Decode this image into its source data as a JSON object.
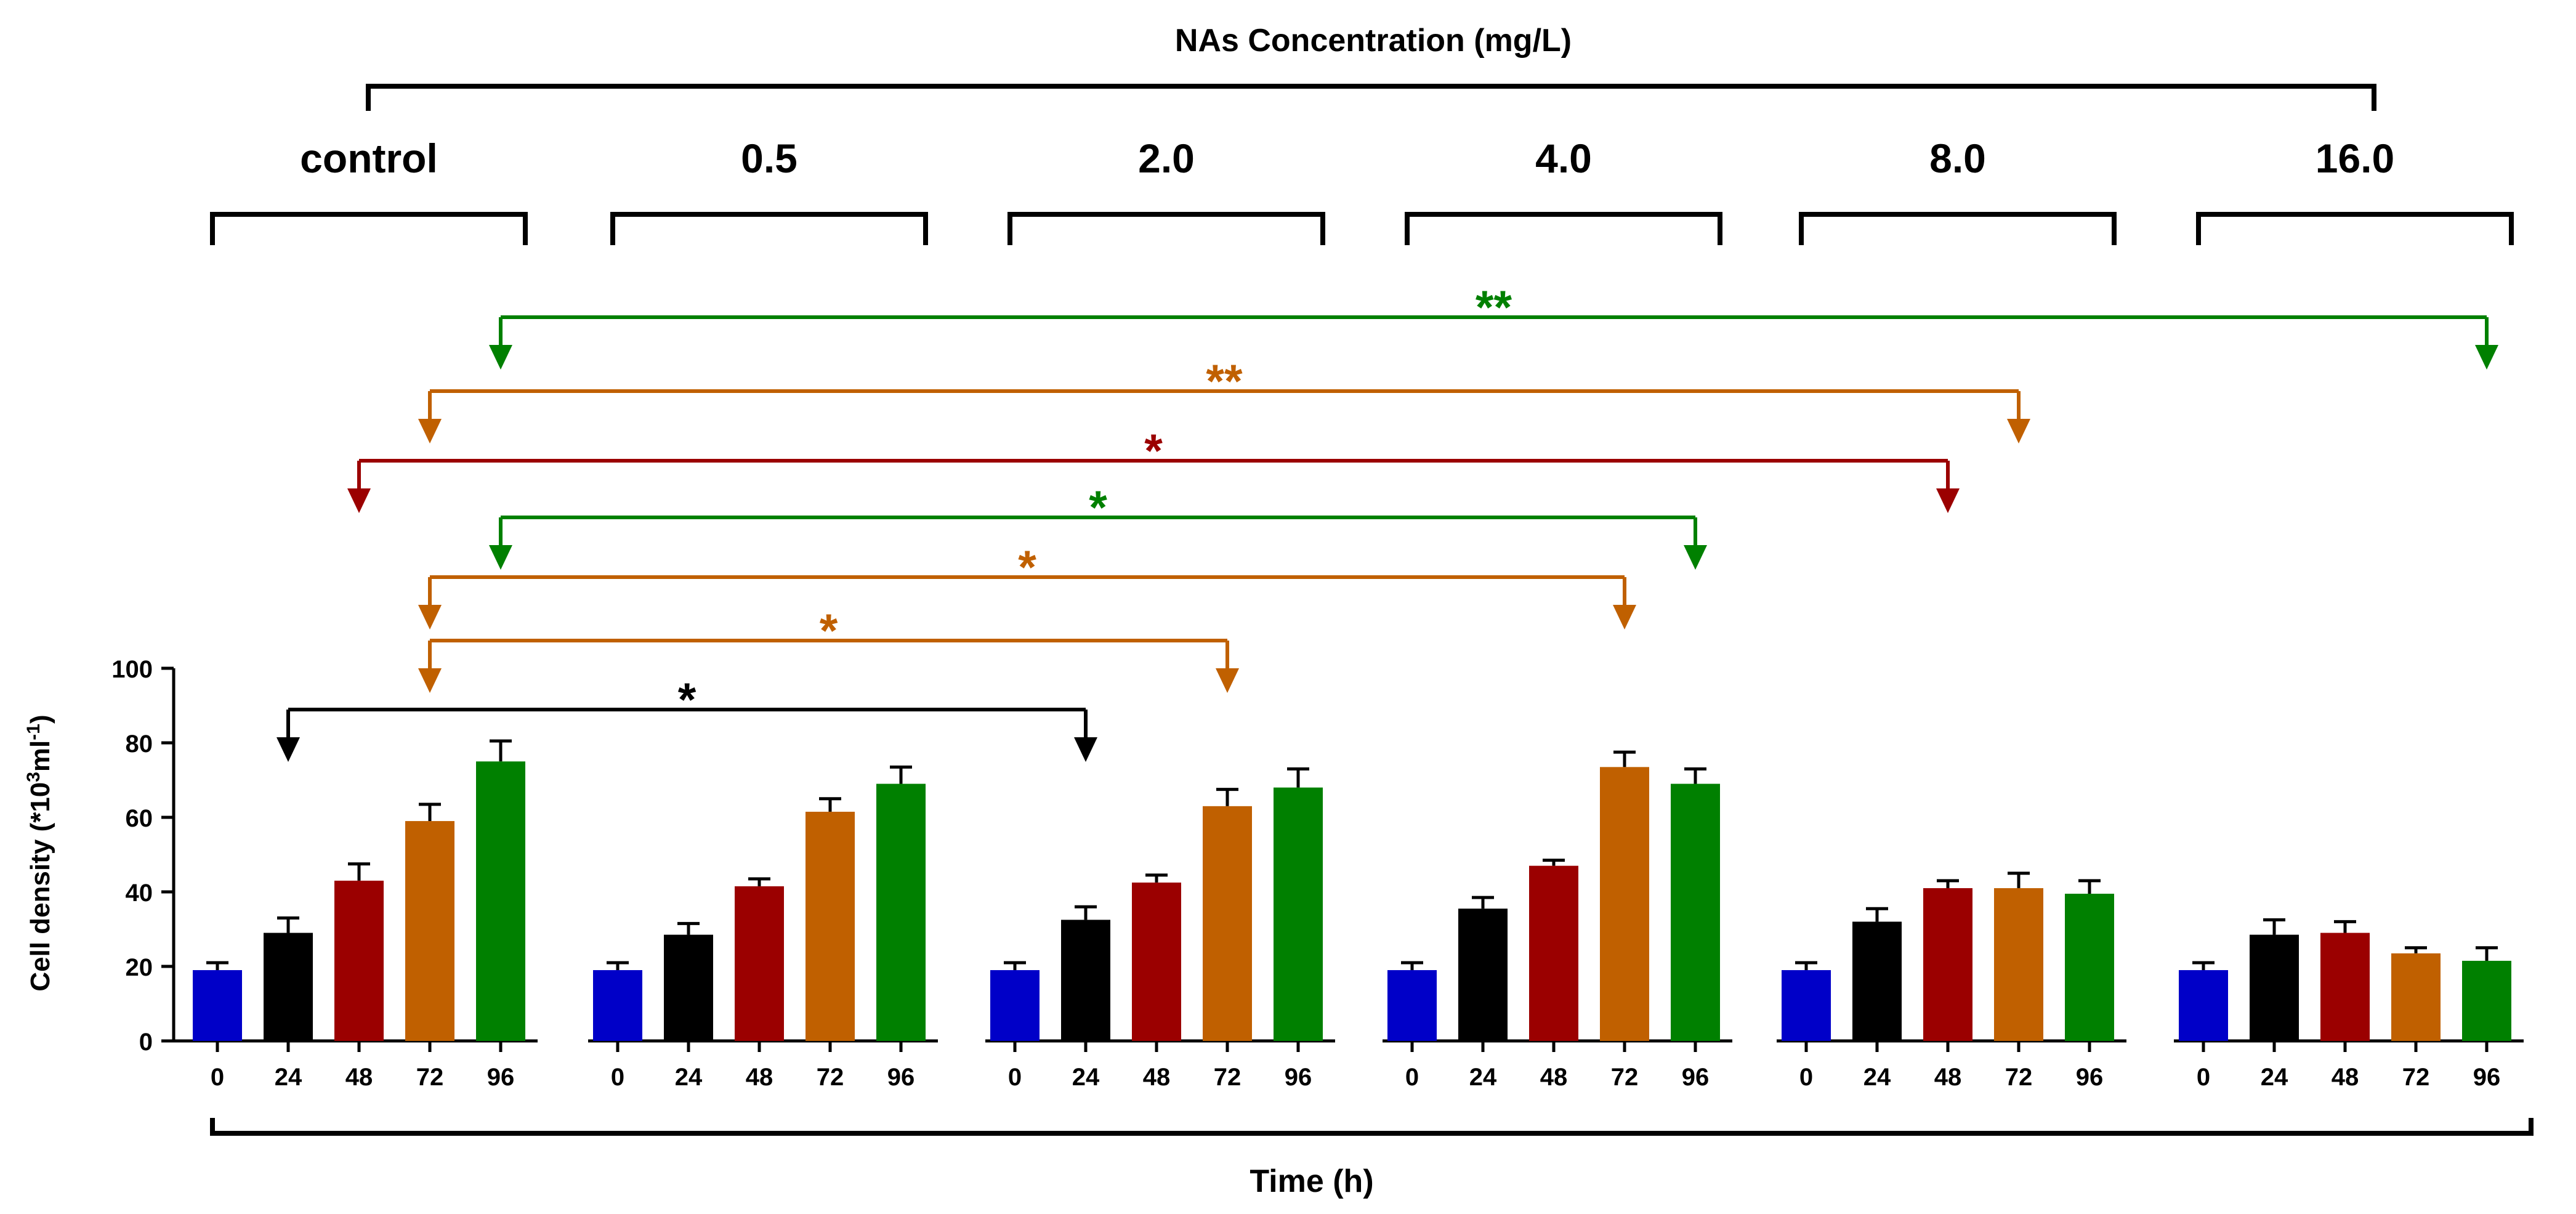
{
  "chart_data": {
    "type": "bar",
    "title": "NAs Concentration (mg/L)",
    "xlabel": "Time (h)",
    "ylabel_main": "Cell density (*10",
    "ylabel_sup1": "3",
    "ylabel_mid": "ml",
    "ylabel_sup2": "-1",
    "ylabel_end": ")",
    "ylim": [
      0,
      100
    ],
    "yticks": [
      "0",
      "20",
      "40",
      "60",
      "80",
      "100"
    ],
    "categories": [
      "0",
      "24",
      "48",
      "72",
      "96"
    ],
    "colors": [
      "#0000c8",
      "#000000",
      "#9b0000",
      "#c06000",
      "#008000"
    ],
    "groups": [
      {
        "label": "control",
        "values": [
          19,
          29,
          43,
          59,
          75
        ],
        "errors": [
          2,
          4,
          4.5,
          4.5,
          5.5
        ]
      },
      {
        "label": "0.5",
        "values": [
          19,
          28.5,
          41.5,
          61.5,
          69
        ],
        "errors": [
          2,
          3,
          2,
          3.5,
          4.5
        ]
      },
      {
        "label": "2.0",
        "values": [
          19,
          32.5,
          42.5,
          63,
          68
        ],
        "errors": [
          2,
          3.5,
          2,
          4.5,
          5
        ]
      },
      {
        "label": "4.0",
        "values": [
          19,
          35.5,
          47,
          73.5,
          69
        ],
        "errors": [
          2,
          3,
          1.5,
          4,
          4
        ]
      },
      {
        "label": "8.0",
        "values": [
          19,
          32,
          41,
          41,
          39.5
        ],
        "errors": [
          2,
          3.5,
          2,
          4,
          3.5
        ]
      },
      {
        "label": "16.0",
        "values": [
          19,
          28.5,
          29,
          23.5,
          21.5
        ],
        "errors": [
          2,
          4,
          3,
          1.5,
          3.5
        ]
      }
    ],
    "comparisons": [
      {
        "label": "**",
        "color": "#008000",
        "from_group": 0,
        "from_cat": 4,
        "to_group": 5,
        "to_cat": 4
      },
      {
        "label": "**",
        "color": "#c06000",
        "from_group": 0,
        "from_cat": 3,
        "to_group": 4,
        "to_cat": 3
      },
      {
        "label": "*",
        "color": "#9b0000",
        "from_group": 0,
        "from_cat": 2,
        "to_group": 4,
        "to_cat": 2
      },
      {
        "label": "*",
        "color": "#008000",
        "from_group": 0,
        "from_cat": 4,
        "to_group": 3,
        "to_cat": 4
      },
      {
        "label": "*",
        "color": "#c06000",
        "from_group": 0,
        "from_cat": 3,
        "to_group": 3,
        "to_cat": 3
      },
      {
        "label": "*",
        "color": "#c06000",
        "from_group": 0,
        "from_cat": 3,
        "to_group": 2,
        "to_cat": 3
      },
      {
        "label": "*",
        "color": "#000000",
        "from_group": 0,
        "from_cat": 1,
        "to_group": 2,
        "to_cat": 1
      }
    ]
  }
}
